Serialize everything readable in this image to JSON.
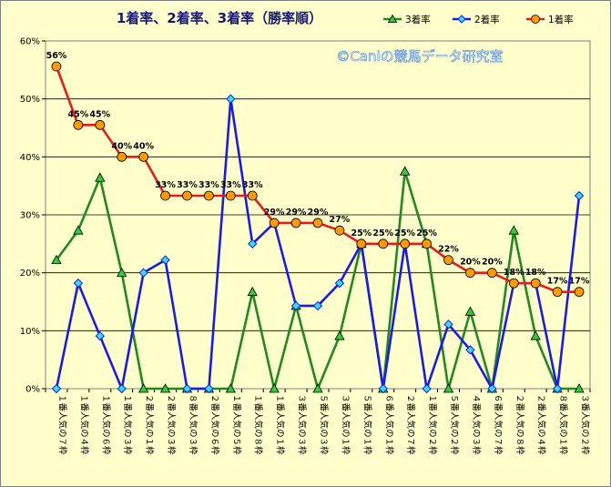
{
  "chart_data": {
    "type": "line",
    "title": "1着率、2着率、3着率（勝率順）",
    "watermark": "©Caniの競馬データ研究室",
    "categories": [
      "１番人気の７枠",
      "１番人気の４枠",
      "１番人気の６枠",
      "１番人気の３枠",
      "２番人気の１枠",
      "２番人気の３枠",
      "８番人気の３枠",
      "２番人気の６枠",
      "１番人気の５枠",
      "１番人気の８枠",
      "１番人気の１枠",
      "３番人気の３枠",
      "５番人気の３枠",
      "３番人気の１枠",
      "５番人気の１枠",
      "６番人気の１枠",
      "２番人気の７枠",
      "１番人気の２枠",
      "５番人気の２枠",
      "４番人気の３枠",
      "６番人気の７枠",
      "２番人気の８枠",
      "２番人気の４枠",
      "８番人気の１枠",
      "３番人気の２枠"
    ],
    "ylim": [
      0,
      60
    ],
    "yticks": [
      "0%",
      "10%",
      "20%",
      "30%",
      "40%",
      "50%",
      "60%"
    ],
    "grid": true,
    "legend_position": "top-right",
    "series": [
      {
        "name": "3着率",
        "color": "#228822",
        "marker": "triangle",
        "marker_fill": "#33cc33",
        "values": [
          22.2,
          27.3,
          36.4,
          20.0,
          0,
          0,
          0,
          0,
          0,
          16.7,
          0,
          14.3,
          0,
          9.1,
          25,
          0,
          37.5,
          25,
          0,
          13.3,
          0,
          27.3,
          9.1,
          0,
          0
        ]
      },
      {
        "name": "2着率",
        "color": "#1a1aee",
        "marker": "diamond",
        "marker_fill": "#33ddff",
        "values": [
          0,
          18.2,
          9.1,
          0,
          20.0,
          22.2,
          0,
          0,
          50.0,
          25.0,
          28.6,
          14.3,
          14.3,
          18.2,
          25,
          0,
          25,
          0,
          11.1,
          6.7,
          0,
          18.2,
          18.2,
          0,
          33.3
        ]
      },
      {
        "name": "1着率",
        "color": "#ee1a1a",
        "marker": "circle",
        "marker_fill": "#ff9900",
        "values": [
          55.6,
          45.5,
          45.5,
          40.0,
          40.0,
          33.3,
          33.3,
          33.3,
          33.3,
          33.3,
          28.6,
          28.6,
          28.6,
          27.3,
          25,
          25,
          25,
          25,
          22.2,
          20.0,
          20.0,
          18.2,
          18.2,
          16.7,
          16.7
        ],
        "labels": [
          "56%",
          "45%",
          "45%",
          "40%",
          "40%",
          "33%",
          "33%",
          "33%",
          "33%",
          "33%",
          "29%",
          "29%",
          "29%",
          "27%",
          "25%",
          "25%",
          "25%",
          "25%",
          "22%",
          "20%",
          "20%",
          "18%",
          "18%",
          "17%",
          "17%"
        ]
      }
    ]
  }
}
